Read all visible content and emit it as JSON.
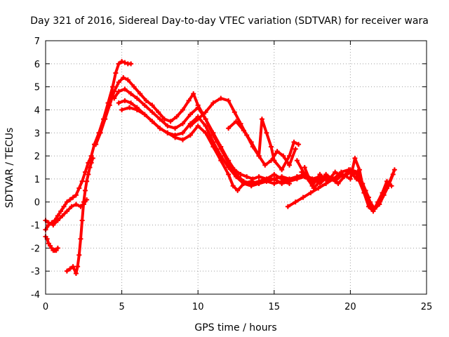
{
  "chart_data": {
    "type": "scatter",
    "title": "Day 321 of 2016, Sidereal Day-to-day VTEC variation (SDTVAR) for receiver wara",
    "xlabel": "GPS time / hours",
    "ylabel": "SDTVAR / TECUs",
    "xlim": [
      0,
      25
    ],
    "ylim": [
      -4,
      7
    ],
    "xticks": [
      0,
      5,
      10,
      15,
      20,
      25
    ],
    "yticks": [
      -4,
      -3,
      -2,
      -1,
      0,
      1,
      2,
      3,
      4,
      5,
      6,
      7
    ],
    "grid": true,
    "marker": "plus",
    "color": "#ff0000",
    "series": [
      {
        "x": [
          0.0,
          0.2,
          0.4,
          0.6,
          0.8,
          1.0,
          1.2,
          1.4,
          1.6,
          1.8,
          2.0,
          2.2,
          2.4,
          2.6,
          2.8,
          3.0,
          3.2,
          3.5,
          3.8,
          4.1,
          4.4,
          4.6,
          4.8,
          5.0,
          5.2,
          5.4,
          5.6
        ],
        "y": [
          -1.2,
          -1.0,
          -0.9,
          -0.8,
          -0.6,
          -0.4,
          -0.2,
          0.0,
          0.1,
          0.2,
          0.3,
          0.6,
          0.9,
          1.3,
          1.7,
          2.0,
          2.5,
          3.0,
          3.6,
          4.3,
          5.0,
          5.6,
          6.0,
          6.1,
          6.05,
          6.0,
          6.0
        ]
      },
      {
        "x": [
          0.0,
          0.1,
          0.2,
          0.3,
          0.4,
          0.5,
          0.6,
          0.7,
          0.8
        ],
        "y": [
          -1.5,
          -1.6,
          -1.8,
          -1.9,
          -2.0,
          -2.1,
          -2.1,
          -2.1,
          -2.0
        ]
      },
      {
        "x": [
          1.4,
          1.6,
          1.8,
          2.0,
          2.1,
          2.2,
          2.3,
          2.4,
          2.5,
          2.6,
          2.7,
          2.8,
          2.9,
          3.0,
          3.1
        ],
        "y": [
          -3.0,
          -2.9,
          -2.8,
          -3.1,
          -2.8,
          -2.3,
          -1.6,
          -0.8,
          0.0,
          0.5,
          0.9,
          1.2,
          1.5,
          1.7,
          1.9
        ]
      },
      {
        "x": [
          0.0,
          0.2,
          0.5,
          0.8,
          1.1,
          1.4,
          1.7,
          2.0,
          2.3,
          2.5,
          2.7
        ],
        "y": [
          -0.8,
          -0.9,
          -1.0,
          -0.8,
          -0.6,
          -0.4,
          -0.2,
          -0.1,
          -0.2,
          -0.1,
          0.1
        ]
      },
      {
        "x": [
          3.3,
          3.6,
          3.9,
          4.2,
          4.5,
          4.8,
          5.1,
          5.4,
          5.8,
          6.2,
          6.6,
          7.0,
          7.4,
          7.8,
          8.2,
          8.6,
          9.0,
          9.4,
          9.7,
          10.0,
          10.5,
          11.0,
          11.5,
          12.0,
          12.4,
          12.8,
          13.2,
          13.6,
          14.0,
          14.5,
          15.0,
          15.5,
          16.0,
          16.5
        ],
        "y": [
          2.5,
          3.0,
          3.6,
          4.2,
          4.8,
          5.2,
          5.4,
          5.3,
          5.0,
          4.7,
          4.4,
          4.2,
          3.9,
          3.6,
          3.5,
          3.7,
          4.0,
          4.4,
          4.7,
          4.2,
          3.6,
          3.0,
          2.4,
          1.8,
          1.4,
          1.2,
          1.1,
          1.0,
          1.1,
          1.0,
          1.0,
          1.1,
          1.0,
          1.1
        ]
      },
      {
        "x": [
          4.5,
          4.8,
          5.2,
          5.6,
          6.0,
          6.5,
          7.0,
          7.5,
          8.0,
          8.5,
          9.0,
          9.5,
          10.0,
          10.5,
          11.0,
          11.5,
          12.0,
          12.5,
          13.0,
          13.5,
          14.0,
          14.5,
          15.0,
          15.5,
          16.0,
          16.5,
          17.0,
          17.5,
          18.0
        ],
        "y": [
          4.5,
          4.8,
          4.9,
          4.7,
          4.5,
          4.2,
          3.9,
          3.6,
          3.3,
          3.2,
          3.4,
          3.8,
          4.1,
          3.6,
          2.9,
          2.3,
          1.7,
          1.2,
          0.9,
          0.8,
          0.9,
          1.0,
          1.2,
          1.0,
          0.9,
          1.1,
          1.2,
          1.0,
          1.1
        ]
      },
      {
        "x": [
          4.8,
          5.2,
          5.6,
          6.0,
          6.5,
          7.0,
          7.5,
          8.0,
          8.5,
          9.0,
          9.5,
          10.0,
          10.5,
          11.0,
          11.5,
          12.0,
          12.5,
          13.0,
          13.5,
          14.0,
          14.5,
          15.0,
          15.5,
          16.0,
          16.5,
          17.0,
          17.5,
          18.0,
          18.5,
          19.0
        ],
        "y": [
          4.3,
          4.4,
          4.3,
          4.1,
          3.8,
          3.5,
          3.2,
          3.0,
          2.9,
          3.0,
          3.4,
          3.7,
          3.3,
          2.6,
          2.0,
          1.5,
          1.1,
          0.8,
          0.7,
          0.8,
          0.9,
          1.0,
          0.8,
          0.9,
          1.0,
          1.1,
          0.9,
          1.0,
          1.1,
          1.0
        ]
      },
      {
        "x": [
          5.0,
          5.5,
          6.0,
          6.5,
          7.0,
          7.5,
          8.0,
          8.5,
          9.0,
          9.5,
          10.0,
          10.5,
          11.0,
          11.5,
          12.0,
          12.3,
          12.6,
          13.0,
          13.5,
          14.0,
          14.5,
          15.0,
          15.5,
          16.0
        ],
        "y": [
          4.0,
          4.1,
          4.0,
          3.8,
          3.5,
          3.2,
          3.0,
          2.8,
          2.7,
          2.9,
          3.3,
          3.0,
          2.4,
          1.8,
          1.2,
          0.7,
          0.5,
          0.8,
          0.9,
          0.8,
          0.9,
          0.8,
          0.9,
          0.8
        ]
      },
      {
        "x": [
          9.5,
          10.0,
          10.5,
          11.0,
          11.5,
          12.0,
          12.4,
          12.8,
          13.2,
          13.6,
          14.0,
          14.4,
          14.8,
          15.2,
          15.6,
          16.0,
          16.4
        ],
        "y": [
          3.3,
          3.6,
          3.9,
          4.3,
          4.5,
          4.4,
          3.9,
          3.4,
          2.9,
          2.4,
          2.0,
          1.6,
          1.8,
          2.2,
          2.0,
          1.6,
          2.3
        ]
      },
      {
        "x": [
          12.0,
          12.5,
          13.0,
          13.5,
          14.0,
          14.2,
          14.5,
          14.8,
          15.0,
          15.5,
          16.0,
          16.3,
          16.6
        ],
        "y": [
          3.2,
          3.5,
          3.1,
          2.6,
          2.0,
          3.6,
          3.0,
          2.4,
          1.8,
          1.4,
          2.0,
          2.6,
          2.5
        ]
      },
      {
        "x": [
          15.9,
          16.4,
          16.9,
          17.4,
          17.9,
          18.4,
          18.9,
          19.4,
          19.9,
          20.4,
          20.9,
          21.4,
          21.9,
          22.4,
          22.9
        ],
        "y": [
          -0.2,
          0.0,
          0.2,
          0.4,
          0.6,
          0.8,
          1.0,
          1.3,
          1.4,
          1.2,
          0.4,
          -0.3,
          -0.1,
          0.6,
          1.4
        ]
      },
      {
        "x": [
          16.5,
          17.0,
          17.5,
          18.0,
          18.5,
          19.0,
          19.5,
          20.0,
          20.3,
          20.6,
          20.9,
          21.2,
          21.5,
          21.8,
          22.1,
          22.4,
          22.7
        ],
        "y": [
          1.8,
          1.2,
          1.0,
          0.8,
          1.1,
          0.9,
          1.2,
          1.0,
          1.9,
          1.4,
          0.4,
          -0.2,
          -0.4,
          0.0,
          0.4,
          0.9,
          0.7
        ]
      },
      {
        "x": [
          17.0,
          17.5,
          18.0,
          18.5,
          19.0,
          19.5,
          20.0,
          20.5,
          21.0,
          21.3,
          21.6,
          21.9,
          22.2,
          22.5,
          22.8
        ],
        "y": [
          1.5,
          0.7,
          1.2,
          0.9,
          1.3,
          1.1,
          1.4,
          1.3,
          0.5,
          0.0,
          -0.3,
          -0.1,
          0.3,
          0.7,
          1.2
        ]
      },
      {
        "x": [
          16.8,
          17.2,
          17.6,
          18.0,
          18.4,
          18.8,
          19.2,
          19.6,
          20.0,
          20.4,
          20.8,
          21.2
        ],
        "y": [
          1.3,
          1.0,
          0.6,
          0.9,
          1.2,
          1.0,
          0.8,
          1.1,
          1.3,
          1.0,
          0.8,
          0.2
        ]
      }
    ]
  }
}
